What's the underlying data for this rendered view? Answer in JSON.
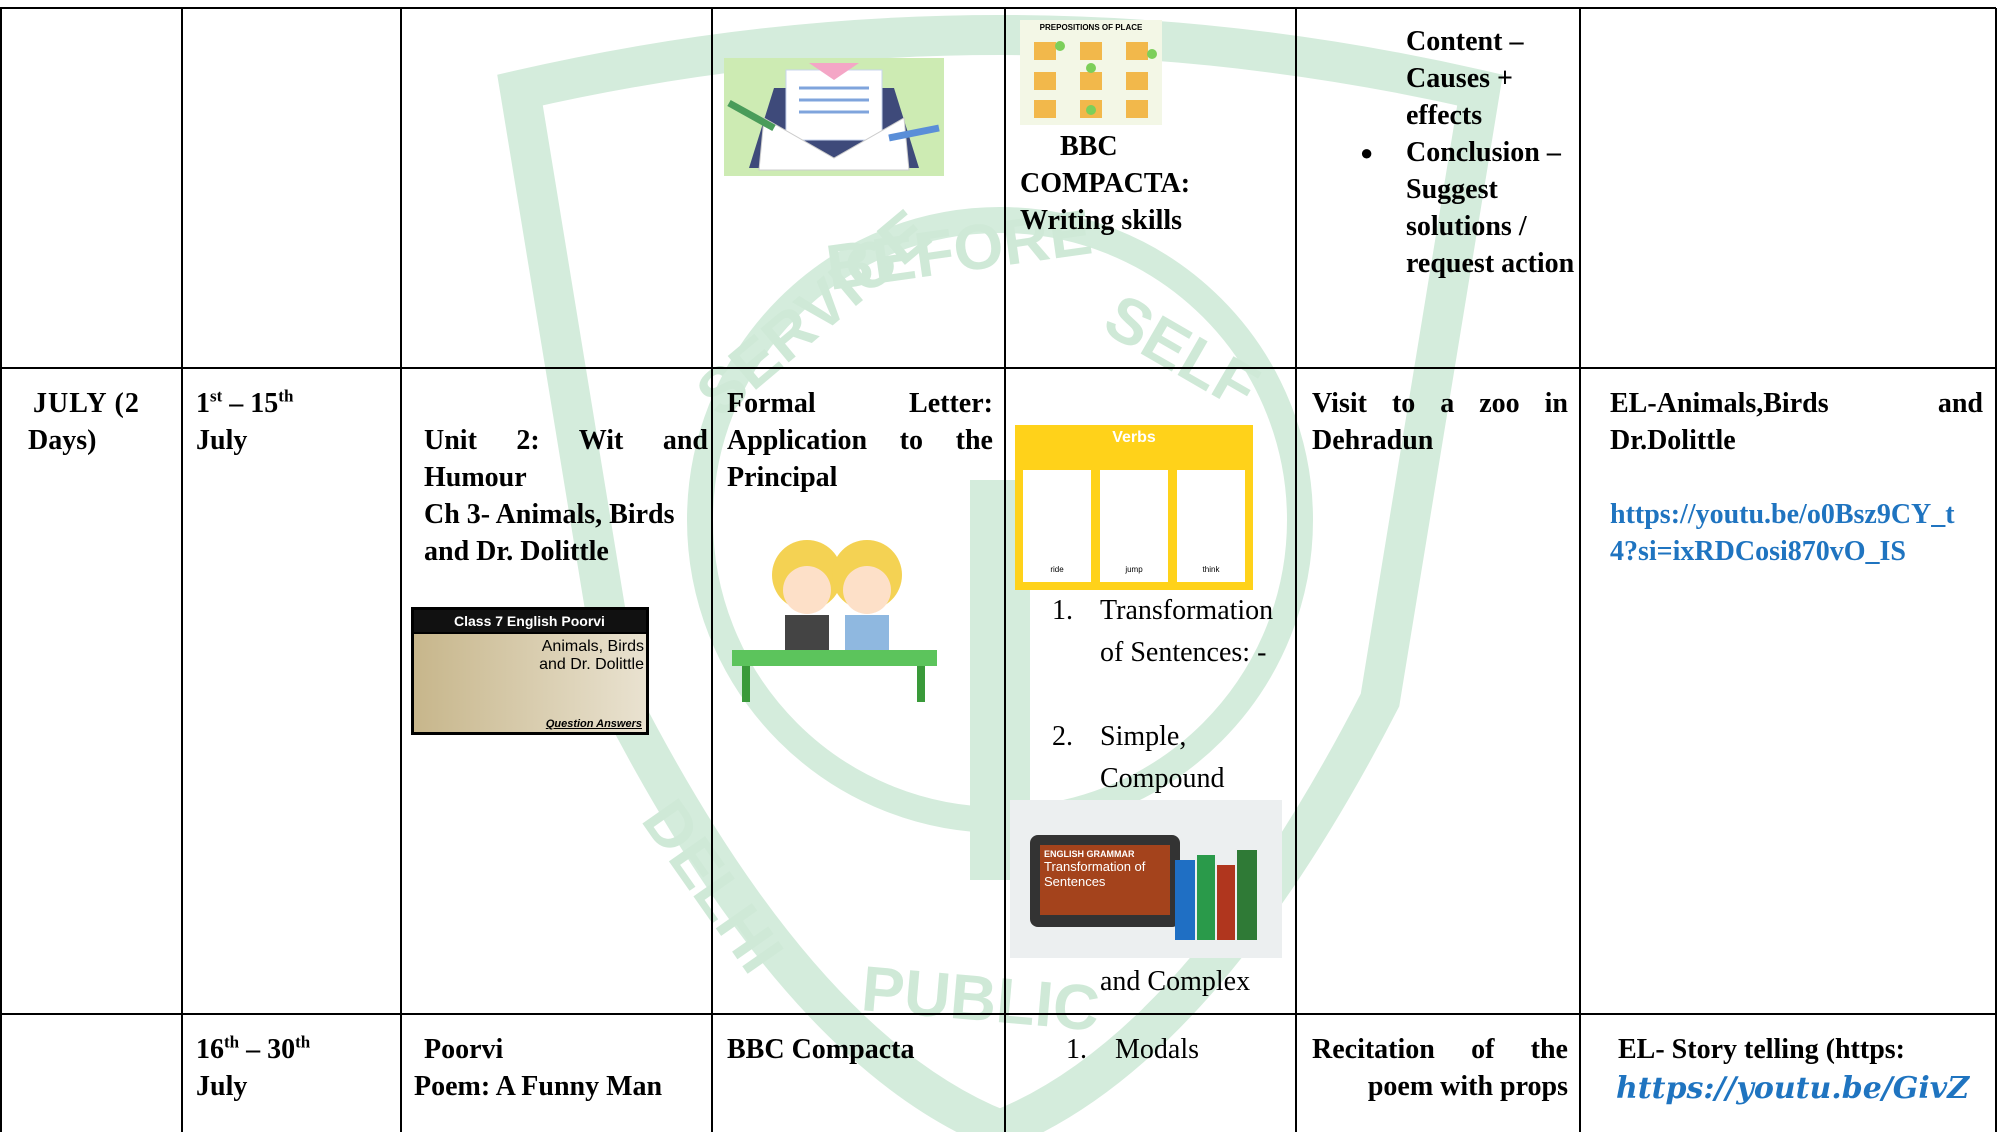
{
  "watermark": {
    "top_left": "SERVICE",
    "top": "BEFORE",
    "top_right": "SELF",
    "bottom_left": "DELHI",
    "bottom": "PUBLIC"
  },
  "table": {
    "rows": [
      {
        "cells": [
          {
            "text": ""
          },
          {
            "text": ""
          },
          {
            "text": ""
          },
          {
            "text": ""
          },
          {
            "image_title": "PREPOSITIONS OF PLACE",
            "lines": [
              "BBC",
              "COMPACTA:",
              "Writing skills"
            ]
          },
          {
            "text": "Content – Causes + effects",
            "bullets": [
              "Conclusion – Suggest solutions / request action"
            ]
          },
          {
            "text": ""
          }
        ]
      },
      {
        "cells": [
          {
            "lines": [
              "JULY (2",
              "Days)"
            ]
          },
          {
            "day_start": "1",
            "sup_start": "st",
            "dash": "–",
            "day_end": "15",
            "sup_end": "th",
            "month": "July"
          },
          {
            "unit": "Unit 2: Wit and Humour",
            "chapter": "Ch 3- Animals, Birds and Dr. Dolittle",
            "image_texts": [
              "Class 7 English Poorvi",
              "Animals, Birds and Dr. Dolittle",
              "Question Answers"
            ]
          },
          {
            "text": "Formal Letter: Application to the Principal"
          },
          {
            "image_title": "Verbs",
            "image_examples": [
              "ride",
              "jump",
              "think"
            ],
            "list": [
              "Transformation of Sentences: -",
              "Simple, Compound"
            ],
            "image2_texts": [
              "ENGLISH GRAMMAR",
              "Transformation of Sentences"
            ],
            "tail": "and Complex"
          },
          {
            "text": "Visit to a zoo in Dehradun"
          },
          {
            "text": "EL-Animals,Birds and Dr.Dolittle",
            "link": "https://youtu.be/o0Bsz9CY_t4?si=ixRDCosi870vO_IS"
          }
        ]
      },
      {
        "cells": [
          {
            "text": ""
          },
          {
            "day_start": "16",
            "sup_start": "th",
            "dash": "–",
            "day_end": "30",
            "sup_end": "th",
            "month": "July"
          },
          {
            "lines": [
              "Poorvi",
              "Poem: A Funny Man"
            ]
          },
          {
            "text": "BBC Compacta"
          },
          {
            "list": [
              "Modals"
            ]
          },
          {
            "text": "Recitation of the poem with props"
          },
          {
            "text": "EL- Story telling (https:",
            "link": "https://youtu.be/GivZ"
          }
        ]
      }
    ]
  }
}
